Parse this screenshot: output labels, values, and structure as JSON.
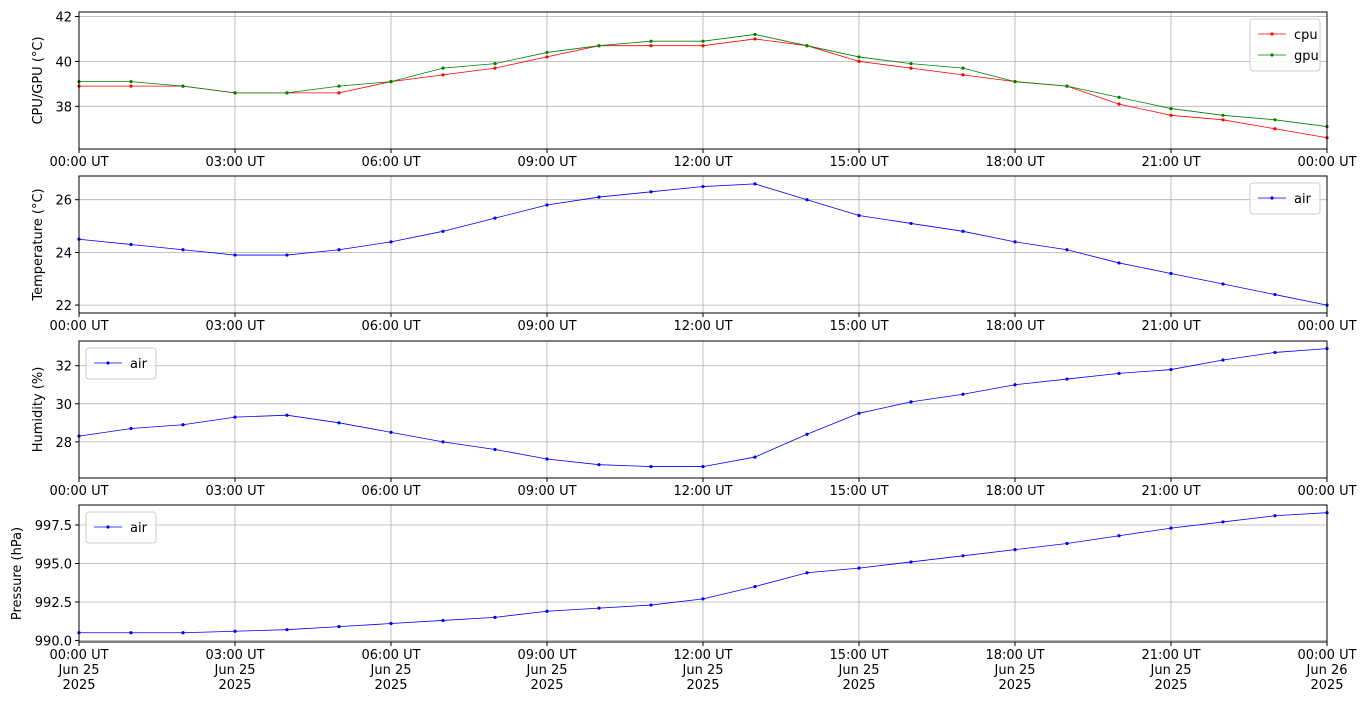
{
  "chart_data": [
    {
      "type": "line",
      "ylabel": "CPU/GPU (°C)",
      "xlim": [
        0,
        24
      ],
      "ylim": [
        36.1,
        42.2
      ],
      "yticks": [
        38,
        40,
        42
      ],
      "grid": true,
      "legend": "upper right",
      "xticks": [
        {
          "value": 0,
          "label": "00:00 UT"
        },
        {
          "value": 3,
          "label": "03:00 UT"
        },
        {
          "value": 6,
          "label": "06:00 UT"
        },
        {
          "value": 9,
          "label": "09:00 UT"
        },
        {
          "value": 12,
          "label": "12:00 UT"
        },
        {
          "value": 15,
          "label": "15:00 UT"
        },
        {
          "value": 18,
          "label": "18:00 UT"
        },
        {
          "value": 21,
          "label": "21:00 UT"
        },
        {
          "value": 24,
          "label": "00:00 UT"
        }
      ],
      "x": [
        0,
        1,
        2,
        3,
        4,
        5,
        6,
        7,
        8,
        9,
        10,
        11,
        12,
        13,
        14,
        15,
        16,
        17,
        18,
        19,
        20,
        21,
        22,
        23,
        24
      ],
      "series": [
        {
          "name": "cpu",
          "color": "#ff0000",
          "values": [
            38.9,
            38.9,
            38.9,
            38.6,
            38.6,
            38.6,
            39.1,
            39.4,
            39.7,
            40.2,
            40.7,
            40.7,
            40.7,
            41.0,
            40.7,
            40.0,
            39.7,
            39.4,
            39.1,
            38.9,
            38.1,
            37.6,
            37.4,
            37.0,
            36.6
          ]
        },
        {
          "name": "gpu",
          "color": "#008000",
          "values": [
            39.1,
            39.1,
            38.9,
            38.6,
            38.6,
            38.9,
            39.1,
            39.7,
            39.9,
            40.4,
            40.7,
            40.9,
            40.9,
            41.2,
            40.7,
            40.2,
            39.9,
            39.7,
            39.1,
            38.9,
            38.4,
            37.9,
            37.6,
            37.4,
            37.1
          ]
        }
      ]
    },
    {
      "type": "line",
      "ylabel": "Temperature (°C)",
      "xlim": [
        0,
        24
      ],
      "ylim": [
        21.7,
        26.9
      ],
      "yticks": [
        22,
        24,
        26
      ],
      "grid": true,
      "legend": "upper right",
      "xticks": [
        {
          "value": 0,
          "label": "00:00 UT"
        },
        {
          "value": 3,
          "label": "03:00 UT"
        },
        {
          "value": 6,
          "label": "06:00 UT"
        },
        {
          "value": 9,
          "label": "09:00 UT"
        },
        {
          "value": 12,
          "label": "12:00 UT"
        },
        {
          "value": 15,
          "label": "15:00 UT"
        },
        {
          "value": 18,
          "label": "18:00 UT"
        },
        {
          "value": 21,
          "label": "21:00 UT"
        },
        {
          "value": 24,
          "label": "00:00 UT"
        }
      ],
      "x": [
        0,
        1,
        2,
        3,
        4,
        5,
        6,
        7,
        8,
        9,
        10,
        11,
        12,
        13,
        14,
        15,
        16,
        17,
        18,
        19,
        20,
        21,
        22,
        23,
        24
      ],
      "series": [
        {
          "name": "air",
          "color": "#0000ff",
          "values": [
            24.5,
            24.3,
            24.1,
            23.9,
            23.9,
            24.1,
            24.4,
            24.8,
            25.3,
            25.8,
            26.1,
            26.3,
            26.5,
            26.6,
            26.0,
            25.4,
            25.1,
            24.8,
            24.4,
            24.1,
            23.6,
            23.2,
            22.8,
            22.4,
            22.0
          ]
        }
      ]
    },
    {
      "type": "line",
      "ylabel": "Humidity (%)",
      "xlim": [
        0,
        24
      ],
      "ylim": [
        26.1,
        33.3
      ],
      "yticks": [
        28,
        30,
        32
      ],
      "grid": true,
      "legend": "upper left",
      "xticks": [
        {
          "value": 0,
          "label": "00:00 UT"
        },
        {
          "value": 3,
          "label": "03:00 UT"
        },
        {
          "value": 6,
          "label": "06:00 UT"
        },
        {
          "value": 9,
          "label": "09:00 UT"
        },
        {
          "value": 12,
          "label": "12:00 UT"
        },
        {
          "value": 15,
          "label": "15:00 UT"
        },
        {
          "value": 18,
          "label": "18:00 UT"
        },
        {
          "value": 21,
          "label": "21:00 UT"
        },
        {
          "value": 24,
          "label": "00:00 UT"
        }
      ],
      "x": [
        0,
        1,
        2,
        3,
        4,
        5,
        6,
        7,
        8,
        9,
        10,
        11,
        12,
        13,
        14,
        15,
        16,
        17,
        18,
        19,
        20,
        21,
        22,
        23,
        24
      ],
      "series": [
        {
          "name": "air",
          "color": "#0000ff",
          "values": [
            28.3,
            28.7,
            28.9,
            29.3,
            29.4,
            29.0,
            28.5,
            28.0,
            27.6,
            27.1,
            26.8,
            26.7,
            26.7,
            27.2,
            28.4,
            29.5,
            30.1,
            30.5,
            31.0,
            31.3,
            31.6,
            31.8,
            32.3,
            32.7,
            32.9
          ]
        }
      ]
    },
    {
      "type": "line",
      "ylabel": "Pressure (hPa)",
      "xlim": [
        0,
        24
      ],
      "ylim": [
        989.9,
        998.8
      ],
      "yticks": [
        {
          "value": 990,
          "label": "990.0"
        },
        {
          "value": 992.5,
          "label": "992.5"
        },
        {
          "value": 995,
          "label": "995.0"
        },
        {
          "value": 997.5,
          "label": "997.5"
        }
      ],
      "grid": true,
      "legend": "upper left",
      "xticks": [
        {
          "value": 0,
          "label": "00:00 UT\nJun 25\n2025"
        },
        {
          "value": 3,
          "label": "03:00 UT\nJun 25\n2025"
        },
        {
          "value": 6,
          "label": "06:00 UT\nJun 25\n2025"
        },
        {
          "value": 9,
          "label": "09:00 UT\nJun 25\n2025"
        },
        {
          "value": 12,
          "label": "12:00 UT\nJun 25\n2025"
        },
        {
          "value": 15,
          "label": "15:00 UT\nJun 25\n2025"
        },
        {
          "value": 18,
          "label": "18:00 UT\nJun 25\n2025"
        },
        {
          "value": 21,
          "label": "21:00 UT\nJun 25\n2025"
        },
        {
          "value": 24,
          "label": "00:00 UT\nJun 26\n2025"
        }
      ],
      "x": [
        0,
        1,
        2,
        3,
        4,
        5,
        6,
        7,
        8,
        9,
        10,
        11,
        12,
        13,
        14,
        15,
        16,
        17,
        18,
        19,
        20,
        21,
        22,
        23,
        24
      ],
      "series": [
        {
          "name": "air",
          "color": "#0000ff",
          "values": [
            990.5,
            990.5,
            990.5,
            990.6,
            990.7,
            990.9,
            991.1,
            991.3,
            991.5,
            991.9,
            992.1,
            992.3,
            992.7,
            993.5,
            994.4,
            994.7,
            995.1,
            995.5,
            995.9,
            996.3,
            996.8,
            997.3,
            997.7,
            998.1,
            998.3
          ]
        }
      ]
    }
  ]
}
